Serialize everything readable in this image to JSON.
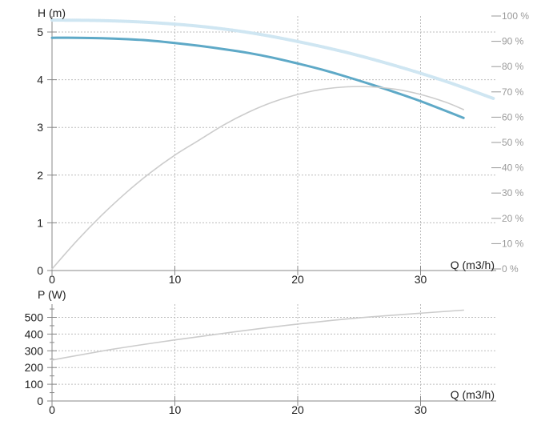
{
  "chart_data": [
    {
      "type": "line",
      "ylabel": "H (m)",
      "xlabel": "Q (m3/h)",
      "xlim": [
        0,
        36
      ],
      "ylim": [
        0,
        5
      ],
      "y2lim": [
        0,
        100
      ],
      "xticks": [
        "0",
        "10",
        "20",
        "30"
      ],
      "yticks": [
        "0",
        "1",
        "2",
        "3",
        "4",
        "5"
      ],
      "y2ticks": [
        "0 %",
        "10 %",
        "20 %",
        "30 %",
        "40 %",
        "50 %",
        "60 %",
        "70 %",
        "80 %",
        "90 %",
        "100 %"
      ],
      "grid": true,
      "series": [
        {
          "color": "#5ea9c7",
          "axis": "left",
          "x": [
            0,
            2,
            4,
            6,
            8,
            10,
            12,
            14,
            16,
            18,
            20,
            22,
            24,
            26,
            28,
            30,
            33.5
          ],
          "y": [
            4.88,
            4.88,
            4.87,
            4.85,
            4.82,
            4.77,
            4.71,
            4.64,
            4.56,
            4.46,
            4.34,
            4.21,
            4.06,
            3.9,
            3.73,
            3.55,
            3.2
          ]
        },
        {
          "color": "#cfe6f2",
          "axis": "left",
          "x": [
            0,
            4,
            8,
            12,
            16,
            20,
            24,
            28,
            32,
            36
          ],
          "y": [
            5.25,
            5.24,
            5.2,
            5.12,
            4.99,
            4.8,
            4.57,
            4.29,
            3.97,
            3.6
          ]
        },
        {
          "color": "#cccccc",
          "axis": "right",
          "x": [
            0,
            2,
            4,
            6,
            8,
            10,
            12,
            14,
            16,
            18,
            20,
            22,
            24,
            26,
            28,
            30,
            32,
            33.5
          ],
          "y": [
            0,
            11,
            21,
            30,
            38,
            45,
            51,
            57,
            62,
            66,
            69,
            71,
            72,
            72,
            71,
            69,
            66,
            63
          ]
        }
      ]
    },
    {
      "type": "line",
      "ylabel": "P (W)",
      "xlabel": "Q (m3/h)",
      "xlim": [
        0,
        36
      ],
      "ylim": [
        0,
        500
      ],
      "xticks": [
        "0",
        "10",
        "20",
        "30"
      ],
      "yticks": [
        "0",
        "100",
        "200",
        "300",
        "400",
        "500"
      ],
      "grid": true,
      "series": [
        {
          "color": "#cccccc",
          "x": [
            0,
            5,
            10,
            15,
            20,
            25,
            30,
            33.5
          ],
          "y": [
            245,
            310,
            365,
            415,
            460,
            497,
            525,
            543
          ]
        }
      ]
    }
  ]
}
